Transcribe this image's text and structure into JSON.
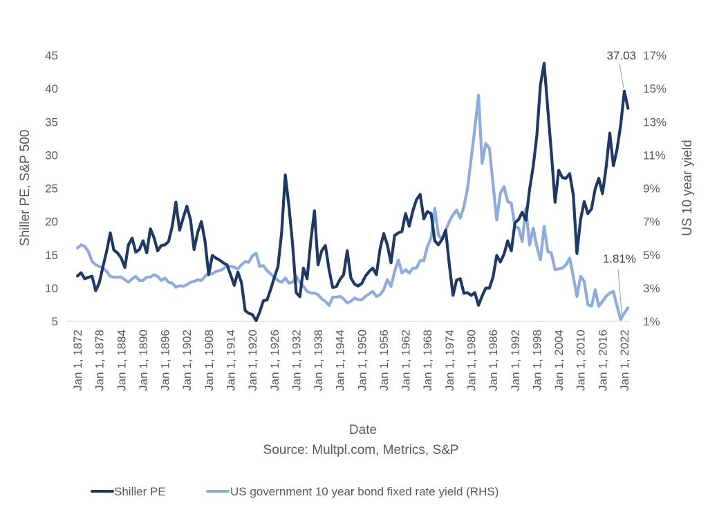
{
  "chart_data": {
    "type": "line",
    "title": "",
    "xlabel": "Date",
    "source": "Source: Multpl.com, Metrics, S&P",
    "ylabel": "Shiller PE, S&P 500",
    "y2label": "US 10 year yield",
    "ylim": [
      5,
      45
    ],
    "y2lim": [
      1,
      17
    ],
    "yticks": [
      "5",
      "10",
      "15",
      "20",
      "25",
      "30",
      "35",
      "40",
      "45"
    ],
    "yticks_values": [
      5,
      10,
      15,
      20,
      25,
      30,
      35,
      40,
      45
    ],
    "y2ticks": [
      "1%",
      "3%",
      "5%",
      "7%",
      "9%",
      "11%",
      "13%",
      "15%",
      "17%"
    ],
    "y2ticks_values": [
      1,
      3,
      5,
      7,
      9,
      11,
      13,
      15,
      17
    ],
    "xlim": [
      1872,
      2023
    ],
    "xticks": [
      "Jan 1, 1872",
      "Jan 1, 1878",
      "Jan 1, 1884",
      "Jan 1, 1890",
      "Jan 1, 1896",
      "Jan 1, 1902",
      "Jan 1, 1908",
      "Jan 1, 1914",
      "Jan 1, 1920",
      "Jan 1, 1926",
      "Jan 1, 1932",
      "Jan 1, 1938",
      "Jan 1, 1944",
      "Jan 1, 1950",
      "Jan 1, 1956",
      "Jan 1, 1962",
      "Jan 1, 1968",
      "Jan 1, 1974",
      "Jan 1, 1980",
      "Jan 1, 1986",
      "Jan 1, 1992",
      "Jan 1, 1998",
      "Jan 1, 2004",
      "Jan 1, 2010",
      "Jan 1, 2016",
      "Jan 1, 2022"
    ],
    "xticks_values": [
      1872,
      1878,
      1884,
      1890,
      1896,
      1902,
      1908,
      1914,
      1920,
      1926,
      1932,
      1938,
      1944,
      1950,
      1956,
      1962,
      1968,
      1974,
      1980,
      1986,
      1992,
      1998,
      2004,
      2010,
      2016,
      2022
    ],
    "grid": false,
    "legend_position": "bottom",
    "x_start_year": 1872,
    "series": [
      {
        "name": "Shiller PE",
        "axis": "left",
        "color": "#1f3864",
        "values": [
          11.8,
          12.3,
          11.4,
          11.6,
          11.8,
          9.6,
          10.8,
          13.2,
          15.5,
          18.3,
          15.7,
          15.3,
          14.5,
          13.1,
          16.5,
          17.5,
          15.4,
          15.8,
          17.1,
          15.3,
          18.9,
          17.6,
          15.6,
          16.4,
          16.5,
          17.0,
          19.3,
          22.9,
          18.7,
          20.5,
          22.3,
          20.3,
          15.8,
          18.4,
          20.0,
          17.0,
          12.0,
          14.9,
          14.5,
          14.2,
          13.8,
          13.5,
          12.0,
          10.4,
          12.4,
          10.8,
          6.6,
          6.2,
          6.0,
          5.1,
          6.4,
          8.1,
          8.2,
          9.8,
          11.6,
          13.2,
          18.3,
          27.0,
          22.3,
          16.7,
          9.3,
          8.7,
          13.0,
          11.4,
          17.1,
          21.6,
          13.5,
          15.6,
          16.4,
          12.8,
          10.1,
          10.2,
          11.3,
          12.0,
          15.6,
          11.5,
          10.6,
          10.3,
          10.7,
          11.8,
          12.5,
          13.0,
          12.0,
          15.9,
          18.2,
          16.5,
          13.8,
          17.9,
          18.3,
          18.5,
          21.2,
          19.3,
          21.6,
          23.3,
          24.1,
          20.4,
          21.5,
          21.2,
          17.1,
          16.5,
          17.3,
          18.7,
          13.5,
          8.9,
          11.2,
          11.4,
          9.2,
          9.3,
          8.9,
          9.3,
          7.4,
          8.8,
          10.0,
          10.0,
          11.7,
          14.9,
          13.9,
          15.1,
          17.1,
          15.6,
          19.8,
          20.3,
          21.4,
          20.2,
          24.8,
          28.3,
          32.9,
          40.6,
          43.8,
          36.9,
          30.3,
          22.9,
          27.7,
          26.6,
          26.5,
          27.2,
          24.0,
          15.2,
          20.3,
          23.0,
          21.2,
          21.9,
          24.9,
          26.5,
          24.2,
          28.1,
          33.3,
          28.4,
          30.9,
          34.5,
          39.6,
          37.03
        ]
      },
      {
        "name": "US government 10 year bond fixed rate yield (RHS)",
        "axis": "right",
        "unit": "%",
        "color": "#8faadc",
        "values": [
          5.4,
          5.6,
          5.5,
          5.2,
          4.6,
          4.4,
          4.3,
          4.2,
          4.0,
          3.7,
          3.65,
          3.65,
          3.65,
          3.5,
          3.35,
          3.55,
          3.7,
          3.45,
          3.45,
          3.65,
          3.65,
          3.8,
          3.7,
          3.45,
          3.6,
          3.35,
          3.3,
          3.05,
          3.15,
          3.1,
          3.2,
          3.35,
          3.4,
          3.5,
          3.45,
          3.7,
          3.9,
          3.85,
          4.0,
          4.05,
          4.15,
          4.35,
          4.3,
          4.25,
          4.15,
          4.4,
          4.6,
          4.55,
          4.95,
          5.1,
          4.3,
          4.35,
          4.05,
          3.85,
          3.65,
          3.45,
          3.35,
          3.6,
          3.3,
          3.35,
          3.7,
          3.35,
          3.1,
          2.8,
          2.7,
          2.7,
          2.6,
          2.35,
          2.2,
          1.95,
          2.45,
          2.45,
          2.5,
          2.35,
          2.1,
          2.2,
          2.4,
          2.3,
          2.3,
          2.5,
          2.65,
          2.8,
          2.5,
          2.6,
          2.9,
          3.5,
          3.1,
          4.0,
          4.7,
          3.9,
          4.1,
          3.9,
          4.2,
          4.2,
          4.65,
          4.65,
          5.5,
          6.0,
          7.8,
          6.2,
          5.9,
          6.5,
          7.0,
          7.4,
          7.7,
          7.2,
          7.9,
          9.0,
          10.8,
          12.6,
          14.6,
          10.5,
          11.7,
          11.4,
          9.2,
          7.1,
          8.7,
          9.1,
          8.2,
          8.1,
          6.7,
          6.6,
          5.8,
          7.8,
          5.6,
          6.6,
          5.5,
          4.7,
          6.7,
          5.2,
          5.1,
          4.1,
          4.15,
          4.2,
          4.4,
          4.8,
          3.7,
          2.5,
          3.7,
          3.4,
          2.0,
          1.9,
          2.9,
          1.9,
          2.2,
          2.5,
          2.7,
          2.8,
          1.9,
          1.1,
          1.5,
          1.81
        ]
      }
    ],
    "annotations": [
      {
        "text": "37.03",
        "series": "Shiller PE",
        "year": 2023,
        "value": 37.03
      },
      {
        "text": "1.81%",
        "series": "US government 10 year bond fixed rate yield (RHS)",
        "year": 2023,
        "value": 1.81
      }
    ]
  }
}
